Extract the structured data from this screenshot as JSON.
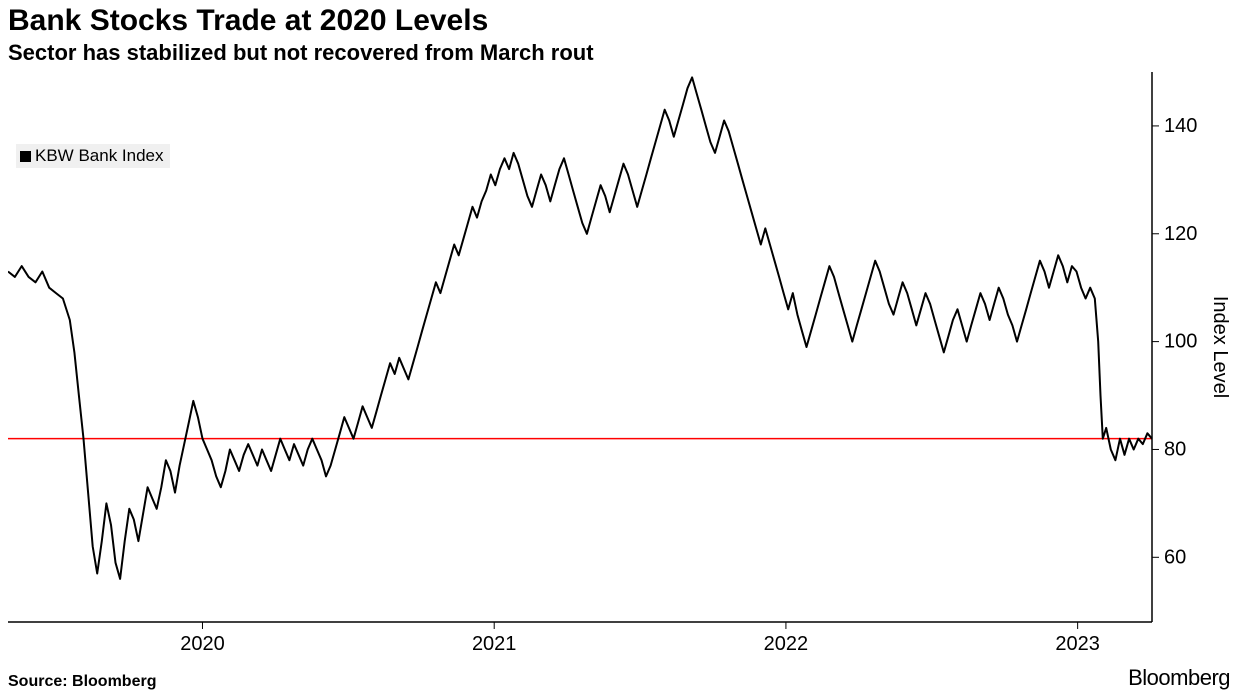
{
  "title": "Bank Stocks Trade at 2020 Levels",
  "subtitle": "Sector has stabilized but not recovered from March rout",
  "legend": {
    "series_name": "KBW Bank Index"
  },
  "source": "Source: Bloomberg",
  "brand": "Bloomberg",
  "chart": {
    "type": "line",
    "y_axis_label": "Index Level",
    "y_ticks": [
      60,
      80,
      100,
      120,
      140
    ],
    "ylim": [
      48,
      150
    ],
    "x_ticks": [
      {
        "t": 0.17,
        "label": "2020"
      },
      {
        "t": 0.425,
        "label": "2021"
      },
      {
        "t": 0.68,
        "label": "2022"
      },
      {
        "t": 0.935,
        "label": "2023"
      }
    ],
    "reference_line": {
      "value": 82,
      "color": "#ff0000",
      "width": 1.5
    },
    "line_color": "#000000",
    "line_width": 2,
    "background_color": "#ffffff",
    "plot_border_color": "#000000",
    "data": [
      [
        0.0,
        113
      ],
      [
        0.006,
        112
      ],
      [
        0.012,
        114
      ],
      [
        0.018,
        112
      ],
      [
        0.024,
        111
      ],
      [
        0.03,
        113
      ],
      [
        0.036,
        110
      ],
      [
        0.042,
        109
      ],
      [
        0.048,
        108
      ],
      [
        0.054,
        104
      ],
      [
        0.058,
        98
      ],
      [
        0.062,
        90
      ],
      [
        0.066,
        82
      ],
      [
        0.07,
        72
      ],
      [
        0.074,
        62
      ],
      [
        0.078,
        57
      ],
      [
        0.082,
        63
      ],
      [
        0.086,
        70
      ],
      [
        0.09,
        66
      ],
      [
        0.094,
        59
      ],
      [
        0.098,
        56
      ],
      [
        0.102,
        63
      ],
      [
        0.106,
        69
      ],
      [
        0.11,
        67
      ],
      [
        0.114,
        63
      ],
      [
        0.118,
        68
      ],
      [
        0.122,
        73
      ],
      [
        0.126,
        71
      ],
      [
        0.13,
        69
      ],
      [
        0.134,
        73
      ],
      [
        0.138,
        78
      ],
      [
        0.142,
        76
      ],
      [
        0.146,
        72
      ],
      [
        0.15,
        77
      ],
      [
        0.154,
        81
      ],
      [
        0.158,
        85
      ],
      [
        0.162,
        89
      ],
      [
        0.166,
        86
      ],
      [
        0.17,
        82
      ],
      [
        0.174,
        80
      ],
      [
        0.178,
        78
      ],
      [
        0.182,
        75
      ],
      [
        0.186,
        73
      ],
      [
        0.19,
        76
      ],
      [
        0.194,
        80
      ],
      [
        0.198,
        78
      ],
      [
        0.202,
        76
      ],
      [
        0.206,
        79
      ],
      [
        0.21,
        81
      ],
      [
        0.214,
        79
      ],
      [
        0.218,
        77
      ],
      [
        0.222,
        80
      ],
      [
        0.226,
        78
      ],
      [
        0.23,
        76
      ],
      [
        0.234,
        79
      ],
      [
        0.238,
        82
      ],
      [
        0.242,
        80
      ],
      [
        0.246,
        78
      ],
      [
        0.25,
        81
      ],
      [
        0.254,
        79
      ],
      [
        0.258,
        77
      ],
      [
        0.262,
        80
      ],
      [
        0.266,
        82
      ],
      [
        0.27,
        80
      ],
      [
        0.274,
        78
      ],
      [
        0.278,
        75
      ],
      [
        0.282,
        77
      ],
      [
        0.286,
        80
      ],
      [
        0.29,
        83
      ],
      [
        0.294,
        86
      ],
      [
        0.298,
        84
      ],
      [
        0.302,
        82
      ],
      [
        0.306,
        85
      ],
      [
        0.31,
        88
      ],
      [
        0.314,
        86
      ],
      [
        0.318,
        84
      ],
      [
        0.322,
        87
      ],
      [
        0.326,
        90
      ],
      [
        0.33,
        93
      ],
      [
        0.334,
        96
      ],
      [
        0.338,
        94
      ],
      [
        0.342,
        97
      ],
      [
        0.346,
        95
      ],
      [
        0.35,
        93
      ],
      [
        0.354,
        96
      ],
      [
        0.358,
        99
      ],
      [
        0.362,
        102
      ],
      [
        0.366,
        105
      ],
      [
        0.37,
        108
      ],
      [
        0.374,
        111
      ],
      [
        0.378,
        109
      ],
      [
        0.382,
        112
      ],
      [
        0.386,
        115
      ],
      [
        0.39,
        118
      ],
      [
        0.394,
        116
      ],
      [
        0.398,
        119
      ],
      [
        0.402,
        122
      ],
      [
        0.406,
        125
      ],
      [
        0.41,
        123
      ],
      [
        0.414,
        126
      ],
      [
        0.418,
        128
      ],
      [
        0.422,
        131
      ],
      [
        0.426,
        129
      ],
      [
        0.43,
        132
      ],
      [
        0.434,
        134
      ],
      [
        0.438,
        132
      ],
      [
        0.442,
        135
      ],
      [
        0.446,
        133
      ],
      [
        0.45,
        130
      ],
      [
        0.454,
        127
      ],
      [
        0.458,
        125
      ],
      [
        0.462,
        128
      ],
      [
        0.466,
        131
      ],
      [
        0.47,
        129
      ],
      [
        0.474,
        126
      ],
      [
        0.478,
        129
      ],
      [
        0.482,
        132
      ],
      [
        0.486,
        134
      ],
      [
        0.49,
        131
      ],
      [
        0.494,
        128
      ],
      [
        0.498,
        125
      ],
      [
        0.502,
        122
      ],
      [
        0.506,
        120
      ],
      [
        0.51,
        123
      ],
      [
        0.514,
        126
      ],
      [
        0.518,
        129
      ],
      [
        0.522,
        127
      ],
      [
        0.526,
        124
      ],
      [
        0.53,
        127
      ],
      [
        0.534,
        130
      ],
      [
        0.538,
        133
      ],
      [
        0.542,
        131
      ],
      [
        0.546,
        128
      ],
      [
        0.55,
        125
      ],
      [
        0.554,
        128
      ],
      [
        0.558,
        131
      ],
      [
        0.562,
        134
      ],
      [
        0.566,
        137
      ],
      [
        0.57,
        140
      ],
      [
        0.574,
        143
      ],
      [
        0.578,
        141
      ],
      [
        0.582,
        138
      ],
      [
        0.586,
        141
      ],
      [
        0.59,
        144
      ],
      [
        0.594,
        147
      ],
      [
        0.598,
        149
      ],
      [
        0.602,
        146
      ],
      [
        0.606,
        143
      ],
      [
        0.61,
        140
      ],
      [
        0.614,
        137
      ],
      [
        0.618,
        135
      ],
      [
        0.622,
        138
      ],
      [
        0.626,
        141
      ],
      [
        0.63,
        139
      ],
      [
        0.634,
        136
      ],
      [
        0.638,
        133
      ],
      [
        0.642,
        130
      ],
      [
        0.646,
        127
      ],
      [
        0.65,
        124
      ],
      [
        0.654,
        121
      ],
      [
        0.658,
        118
      ],
      [
        0.662,
        121
      ],
      [
        0.666,
        118
      ],
      [
        0.67,
        115
      ],
      [
        0.674,
        112
      ],
      [
        0.678,
        109
      ],
      [
        0.682,
        106
      ],
      [
        0.686,
        109
      ],
      [
        0.69,
        105
      ],
      [
        0.694,
        102
      ],
      [
        0.698,
        99
      ],
      [
        0.702,
        102
      ],
      [
        0.706,
        105
      ],
      [
        0.71,
        108
      ],
      [
        0.714,
        111
      ],
      [
        0.718,
        114
      ],
      [
        0.722,
        112
      ],
      [
        0.726,
        109
      ],
      [
        0.73,
        106
      ],
      [
        0.734,
        103
      ],
      [
        0.738,
        100
      ],
      [
        0.742,
        103
      ],
      [
        0.746,
        106
      ],
      [
        0.75,
        109
      ],
      [
        0.754,
        112
      ],
      [
        0.758,
        115
      ],
      [
        0.762,
        113
      ],
      [
        0.766,
        110
      ],
      [
        0.77,
        107
      ],
      [
        0.774,
        105
      ],
      [
        0.778,
        108
      ],
      [
        0.782,
        111
      ],
      [
        0.786,
        109
      ],
      [
        0.79,
        106
      ],
      [
        0.794,
        103
      ],
      [
        0.798,
        106
      ],
      [
        0.802,
        109
      ],
      [
        0.806,
        107
      ],
      [
        0.81,
        104
      ],
      [
        0.814,
        101
      ],
      [
        0.818,
        98
      ],
      [
        0.822,
        101
      ],
      [
        0.826,
        104
      ],
      [
        0.83,
        106
      ],
      [
        0.834,
        103
      ],
      [
        0.838,
        100
      ],
      [
        0.842,
        103
      ],
      [
        0.846,
        106
      ],
      [
        0.85,
        109
      ],
      [
        0.854,
        107
      ],
      [
        0.858,
        104
      ],
      [
        0.862,
        107
      ],
      [
        0.866,
        110
      ],
      [
        0.87,
        108
      ],
      [
        0.874,
        105
      ],
      [
        0.878,
        103
      ],
      [
        0.882,
        100
      ],
      [
        0.886,
        103
      ],
      [
        0.89,
        106
      ],
      [
        0.894,
        109
      ],
      [
        0.898,
        112
      ],
      [
        0.902,
        115
      ],
      [
        0.906,
        113
      ],
      [
        0.91,
        110
      ],
      [
        0.914,
        113
      ],
      [
        0.918,
        116
      ],
      [
        0.922,
        114
      ],
      [
        0.926,
        111
      ],
      [
        0.93,
        114
      ],
      [
        0.934,
        113
      ],
      [
        0.938,
        110
      ],
      [
        0.942,
        108
      ],
      [
        0.946,
        110
      ],
      [
        0.95,
        108
      ],
      [
        0.953,
        100
      ],
      [
        0.955,
        90
      ],
      [
        0.957,
        82
      ],
      [
        0.96,
        84
      ],
      [
        0.964,
        80
      ],
      [
        0.968,
        78
      ],
      [
        0.972,
        82
      ],
      [
        0.976,
        79
      ],
      [
        0.98,
        82
      ],
      [
        0.984,
        80
      ],
      [
        0.988,
        82
      ],
      [
        0.992,
        81
      ],
      [
        0.996,
        83
      ],
      [
        1.0,
        82
      ]
    ]
  }
}
